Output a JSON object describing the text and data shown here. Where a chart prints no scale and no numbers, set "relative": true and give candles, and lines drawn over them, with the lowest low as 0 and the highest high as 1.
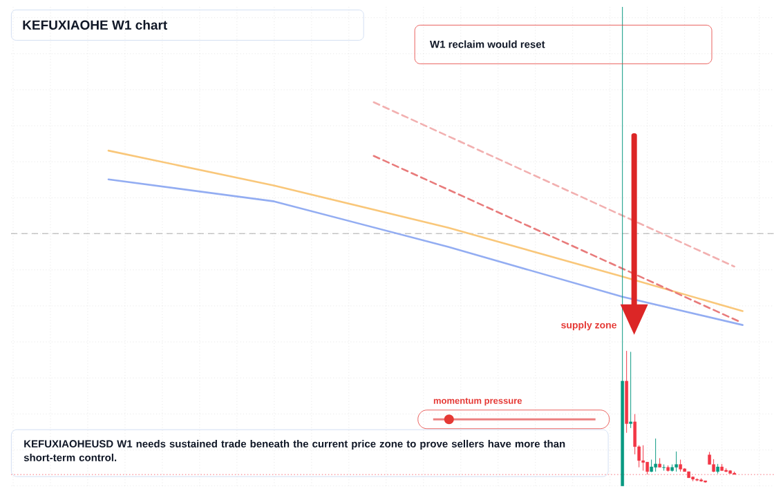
{
  "chart_data": {
    "type": "candlestick",
    "title": "KEFUXIAOHE W1 chart",
    "relative": true,
    "tick_labels": false,
    "grid": true,
    "categories": [
      null,
      null,
      null,
      null,
      null,
      null,
      null,
      null,
      null,
      null,
      null,
      null,
      null,
      null,
      null,
      null,
      null,
      null,
      null,
      null,
      null,
      null,
      null,
      null,
      null,
      null,
      null,
      null,
      null,
      null,
      null,
      null,
      null,
      null,
      null,
      null,
      null,
      null,
      null,
      null,
      null,
      null,
      null,
      null,
      null,
      null,
      null,
      null,
      null,
      null,
      null,
      null,
      null,
      null,
      null,
      null,
      null,
      null,
      null,
      null,
      null,
      null,
      null,
      null,
      null,
      null,
      null,
      null,
      null,
      null,
      null,
      null,
      null,
      null,
      null,
      null,
      null,
      null,
      null,
      null,
      null,
      null,
      null,
      null,
      null,
      null,
      null,
      null,
      null,
      null,
      null,
      null,
      null,
      null,
      null,
      null,
      null,
      null,
      null,
      null,
      null,
      null,
      null,
      null,
      null,
      null,
      null,
      null,
      null,
      null,
      null,
      null,
      null,
      null,
      null,
      null,
      null,
      null,
      null,
      null,
      null,
      null,
      null,
      null,
      null,
      null,
      null,
      null,
      null,
      null,
      null,
      null,
      null,
      null,
      null,
      null,
      null,
      null,
      null,
      null,
      null,
      null,
      null,
      null,
      null,
      null,
      null,
      null,
      null,
      null,
      null,
      null,
      null,
      null,
      null,
      null,
      null,
      null,
      null,
      null,
      null,
      null,
      null,
      null,
      null,
      null,
      null,
      null,
      null,
      null,
      null,
      null,
      null,
      null,
      null,
      null,
      null,
      null,
      null,
      null,
      null,
      null,
      null,
      null
    ],
    "ohlc": [
      null,
      null,
      null,
      null,
      null,
      null,
      null,
      null,
      null,
      null,
      null,
      null,
      null,
      null,
      null,
      null,
      null,
      null,
      null,
      null,
      null,
      null,
      null,
      null,
      null,
      null,
      null,
      null,
      null,
      null,
      null,
      null,
      null,
      null,
      null,
      null,
      null,
      null,
      null,
      null,
      null,
      null,
      null,
      null,
      null,
      null,
      null,
      null,
      null,
      null,
      null,
      null,
      null,
      null,
      null,
      null,
      null,
      null,
      null,
      null,
      null,
      null,
      null,
      null,
      null,
      null,
      null,
      null,
      null,
      null,
      null,
      null,
      null,
      null,
      null,
      null,
      null,
      null,
      null,
      null,
      null,
      null,
      null,
      null,
      null,
      null,
      null,
      null,
      null,
      null,
      null,
      null,
      null,
      null,
      null,
      null,
      null,
      null,
      null,
      null,
      null,
      null,
      null,
      null,
      null,
      null,
      null,
      null,
      null,
      null,
      null,
      null,
      null,
      null,
      null,
      null,
      null,
      null,
      null,
      null,
      null,
      null,
      null,
      null,
      null,
      null,
      null,
      null,
      null,
      null,
      null,
      null,
      null,
      null,
      null,
      null,
      null,
      null,
      null,
      null,
      null,
      null,
      null,
      null,
      null,
      null,
      null,
      [
        0,
        1,
        0,
        0.219
      ],
      [
        0.219,
        0.282,
        0.111,
        0.13
      ],
      [
        0.13,
        0.28,
        0.121,
        0.134
      ],
      [
        0.134,
        0.15,
        0.066,
        0.082
      ],
      [
        0.082,
        0.085,
        0.039,
        0.053
      ],
      [
        0.053,
        0.085,
        0.032,
        0.049
      ],
      [
        0.05,
        0.05,
        0.024,
        0.03
      ],
      [
        0.03,
        0.055,
        0.029,
        0.04
      ],
      [
        0.039,
        0.099,
        0.03,
        0.046
      ],
      [
        0.046,
        0.058,
        0.039,
        0.039
      ],
      [
        0.038,
        0.045,
        0.032,
        0.039
      ],
      [
        0.039,
        0.043,
        0.03,
        0.032
      ],
      [
        0.032,
        0.045,
        0.03,
        0.039
      ],
      [
        0.039,
        0.072,
        0.03,
        0.045
      ],
      [
        0.045,
        0.055,
        0.03,
        0.035
      ],
      [
        0.036,
        0.037,
        0.03,
        0.03
      ],
      [
        0.03,
        0.03,
        0.017,
        0.017
      ],
      [
        0.019,
        0.02,
        0.01,
        0.014
      ],
      [
        0.014,
        0.016,
        0.01,
        0.012
      ],
      [
        0.013,
        0.016,
        0.009,
        0.01
      ],
      [
        0.011,
        0.011,
        0.007,
        0.008
      ],
      [
        0.065,
        0.071,
        0.045,
        0.045
      ],
      [
        0.045,
        0.056,
        0.029,
        0.03
      ],
      [
        0.03,
        0.046,
        0.026,
        0.04
      ],
      [
        0.04,
        0.046,
        0.032,
        0.032
      ],
      [
        0.033,
        0.037,
        0.029,
        0.03
      ],
      [
        0.032,
        0.033,
        0.026,
        0.026
      ],
      [
        0.027,
        0.03,
        0.024,
        0.024
      ],
      null,
      null,
      null,
      null,
      null,
      null,
      null,
      null,
      null
    ],
    "colors": [
      null,
      null,
      null,
      null,
      null,
      null,
      null,
      null,
      null,
      null,
      null,
      null,
      null,
      null,
      null,
      null,
      null,
      null,
      null,
      null,
      null,
      null,
      null,
      null,
      null,
      null,
      null,
      null,
      null,
      null,
      null,
      null,
      null,
      null,
      null,
      null,
      null,
      null,
      null,
      null,
      null,
      null,
      null,
      null,
      null,
      null,
      null,
      null,
      null,
      null,
      null,
      null,
      null,
      null,
      null,
      null,
      null,
      null,
      null,
      null,
      null,
      null,
      null,
      null,
      null,
      null,
      null,
      null,
      null,
      null,
      null,
      null,
      null,
      null,
      null,
      null,
      null,
      null,
      null,
      null,
      null,
      null,
      null,
      null,
      null,
      null,
      null,
      null,
      null,
      null,
      null,
      null,
      null,
      null,
      null,
      null,
      null,
      null,
      null,
      null,
      null,
      null,
      null,
      null,
      null,
      null,
      null,
      null,
      null,
      null,
      null,
      null,
      null,
      null,
      null,
      null,
      null,
      null,
      null,
      null,
      null,
      null,
      null,
      null,
      null,
      null,
      null,
      null,
      null,
      null,
      null,
      null,
      null,
      null,
      null,
      null,
      null,
      null,
      null,
      null,
      null,
      null,
      null,
      null,
      null,
      null,
      null,
      "#089981",
      "#f23645",
      "#089981",
      "#f23645",
      "#f23645",
      "#f23645",
      "#f23645",
      "#089981",
      "#089981",
      "#f23645",
      "#089981",
      "#f23645",
      "#089981",
      "#089981",
      "#f23645",
      "#f23645",
      "#f23645",
      "#f23645",
      "#f23645",
      "#f23645",
      "#f23645",
      "#f23645",
      "#f23645",
      "#089981",
      "#f23645",
      "#f23645",
      "#f23645",
      "#f23645",
      null,
      null,
      null,
      null,
      null,
      null,
      null,
      null,
      null
    ],
    "series": [
      {
        "type": "line",
        "color": "#f9c77a",
        "line_style": "solid",
        "values": [
          null,
          null,
          null,
          null,
          null,
          null,
          null,
          null,
          null,
          null,
          null,
          null,
          null,
          null,
          null,
          null,
          null,
          null,
          null,
          null,
          null,
          null,
          null,
          0.7,
          null,
          null,
          null,
          null,
          null,
          null,
          null,
          null,
          null,
          null,
          null,
          null,
          null,
          null,
          null,
          null,
          null,
          null,
          null,
          null,
          null,
          null,
          null,
          null,
          null,
          null,
          null,
          null,
          null,
          null,
          null,
          null,
          null,
          null,
          null,
          null,
          null,
          null,
          null,
          0.627,
          null,
          null,
          null,
          null,
          null,
          null,
          null,
          null,
          null,
          null,
          null,
          null,
          null,
          null,
          null,
          null,
          null,
          null,
          null,
          null,
          null,
          null,
          null,
          null,
          null,
          null,
          null,
          null,
          null,
          null,
          null,
          null,
          null,
          null,
          null,
          null,
          null,
          null,
          null,
          null,
          null,
          0.539,
          null,
          null,
          null,
          null,
          null,
          null,
          null,
          null,
          null,
          null,
          null,
          null,
          null,
          null,
          null,
          null,
          null,
          null,
          null,
          null,
          null,
          null,
          null,
          null,
          null,
          null,
          null,
          null,
          null,
          null,
          null,
          null,
          null,
          null,
          null,
          null,
          null,
          null,
          null,
          null,
          null,
          0.437,
          null,
          null,
          null,
          null,
          null,
          null,
          null,
          null,
          null,
          null,
          null,
          null,
          null,
          null,
          null,
          null,
          null,
          null,
          null,
          null,
          null,
          null,
          null,
          null,
          null,
          null,
          null,
          null,
          0.365,
          null,
          null,
          null,
          null,
          null,
          null,
          null
        ]
      },
      {
        "type": "line",
        "color": "#93adf2",
        "line_style": "solid",
        "values": [
          null,
          null,
          null,
          null,
          null,
          null,
          null,
          null,
          null,
          null,
          null,
          null,
          null,
          null,
          null,
          null,
          null,
          null,
          null,
          null,
          null,
          null,
          null,
          0.64,
          null,
          null,
          null,
          null,
          null,
          null,
          null,
          null,
          null,
          null,
          null,
          null,
          null,
          null,
          null,
          null,
          null,
          null,
          null,
          null,
          null,
          null,
          null,
          null,
          null,
          null,
          null,
          null,
          null,
          null,
          null,
          null,
          null,
          null,
          null,
          null,
          null,
          null,
          null,
          0.594,
          null,
          null,
          null,
          null,
          null,
          null,
          null,
          null,
          null,
          null,
          null,
          null,
          null,
          null,
          null,
          null,
          null,
          null,
          null,
          null,
          null,
          null,
          null,
          null,
          null,
          null,
          null,
          null,
          null,
          null,
          null,
          null,
          null,
          null,
          null,
          null,
          null,
          null,
          null,
          null,
          null,
          0.499,
          null,
          null,
          null,
          null,
          null,
          null,
          null,
          null,
          null,
          null,
          null,
          null,
          null,
          null,
          null,
          null,
          null,
          null,
          null,
          null,
          null,
          null,
          null,
          null,
          null,
          null,
          null,
          null,
          null,
          null,
          null,
          null,
          null,
          null,
          null,
          null,
          null,
          null,
          null,
          null,
          null,
          0.395,
          null,
          null,
          null,
          null,
          null,
          null,
          null,
          null,
          null,
          null,
          null,
          null,
          null,
          null,
          null,
          null,
          null,
          null,
          null,
          null,
          null,
          null,
          null,
          null,
          null,
          null,
          null,
          null,
          0.336,
          null,
          null,
          null,
          null,
          null,
          null,
          null
        ]
      },
      {
        "type": "line",
        "color": "#e87b7b",
        "line_style": "dashed",
        "values": [
          null,
          null,
          null,
          null,
          null,
          null,
          null,
          null,
          null,
          null,
          null,
          null,
          null,
          null,
          null,
          null,
          null,
          null,
          null,
          null,
          null,
          null,
          null,
          null,
          null,
          null,
          null,
          null,
          null,
          null,
          null,
          null,
          null,
          null,
          null,
          null,
          null,
          null,
          null,
          null,
          null,
          null,
          null,
          null,
          null,
          null,
          null,
          null,
          null,
          null,
          null,
          null,
          null,
          null,
          null,
          null,
          null,
          null,
          null,
          null,
          null,
          null,
          null,
          null,
          null,
          null,
          null,
          null,
          null,
          null,
          null,
          null,
          null,
          null,
          null,
          null,
          null,
          null,
          null,
          null,
          null,
          null,
          null,
          null,
          null,
          null,
          null,
          0.689,
          null,
          null,
          null,
          null,
          null,
          null,
          null,
          null,
          null,
          null,
          null,
          null,
          null,
          null,
          null,
          null,
          null,
          null,
          null,
          null,
          null,
          null,
          null,
          null,
          null,
          null,
          null,
          null,
          null,
          null,
          null,
          null,
          null,
          null,
          null,
          null,
          null,
          null,
          null,
          null,
          null,
          null,
          null,
          null,
          null,
          null,
          null,
          null,
          null,
          null,
          null,
          null,
          null,
          null,
          null,
          null,
          null,
          null,
          null,
          null,
          null,
          null,
          null,
          null,
          null,
          null,
          null,
          null,
          null,
          null,
          null,
          null,
          null,
          null,
          null,
          null,
          null,
          null,
          null,
          null,
          null,
          null,
          null,
          null,
          null,
          null,
          null,
          0.344,
          null,
          null,
          null,
          null,
          null,
          null,
          null,
          null
        ]
      },
      {
        "type": "line",
        "color": "#f2b0b0",
        "line_style": "dashed",
        "values": [
          null,
          null,
          null,
          null,
          null,
          null,
          null,
          null,
          null,
          null,
          null,
          null,
          null,
          null,
          null,
          null,
          null,
          null,
          null,
          null,
          null,
          null,
          null,
          null,
          null,
          null,
          null,
          null,
          null,
          null,
          null,
          null,
          null,
          null,
          null,
          null,
          null,
          null,
          null,
          null,
          null,
          null,
          null,
          null,
          null,
          null,
          null,
          null,
          null,
          null,
          null,
          null,
          null,
          null,
          null,
          null,
          null,
          null,
          null,
          null,
          null,
          null,
          null,
          null,
          null,
          null,
          null,
          null,
          null,
          null,
          null,
          null,
          null,
          null,
          null,
          null,
          null,
          null,
          null,
          null,
          null,
          null,
          null,
          null,
          null,
          null,
          null,
          0.801,
          null,
          null,
          null,
          null,
          null,
          null,
          null,
          null,
          null,
          null,
          null,
          null,
          null,
          null,
          null,
          null,
          null,
          null,
          null,
          null,
          null,
          null,
          null,
          null,
          null,
          null,
          null,
          null,
          null,
          null,
          null,
          null,
          null,
          null,
          null,
          null,
          null,
          null,
          null,
          null,
          null,
          null,
          null,
          null,
          null,
          null,
          null,
          null,
          null,
          null,
          null,
          null,
          null,
          null,
          null,
          null,
          null,
          null,
          null,
          null,
          null,
          null,
          null,
          null,
          null,
          null,
          null,
          null,
          null,
          null,
          null,
          null,
          null,
          null,
          null,
          null,
          null,
          null,
          null,
          null,
          null,
          null,
          null,
          null,
          null,
          null,
          0.458,
          null,
          null,
          null,
          null,
          null,
          null,
          null,
          null,
          null
        ]
      }
    ],
    "ref_lines": [
      {
        "axis": "y",
        "value": 0.527,
        "color": "#8a8a8a",
        "line_style": "dashed"
      },
      {
        "axis": "y",
        "value": 0.024,
        "color": "#f23645",
        "line_style": "dotted"
      }
    ],
    "annotations": [
      "W1 reclaim would reset",
      "supply zone",
      "momentum pressure",
      "KEFUXIAOHEUSD W1 needs sustained trade beneath the current price zone to prove sellers have more than short-term control."
    ]
  }
}
